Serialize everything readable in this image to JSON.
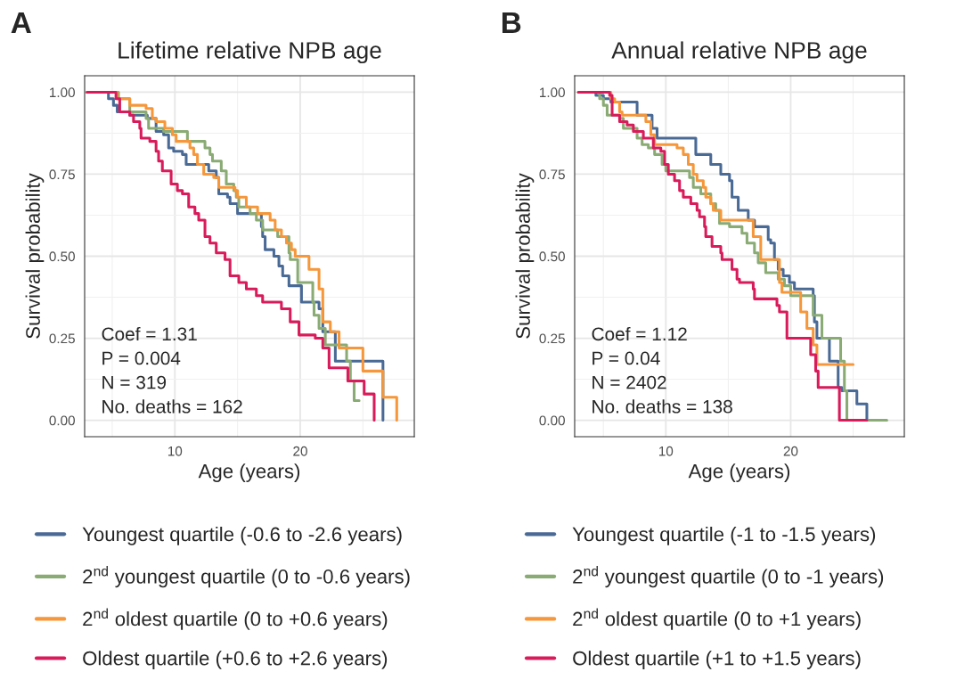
{
  "chart_data": [
    {
      "type": "step",
      "title": "Lifetime relative NPB age",
      "xlabel": "Age (years)",
      "ylabel": "Survival probability",
      "annotations": [
        "A",
        "Coef = 1.31",
        "P = 0.004",
        "N = 319",
        "No. deaths = 162"
      ],
      "xlim": [
        2.8,
        29.1
      ],
      "xticks": [
        10,
        20
      ],
      "ylim": [
        -0.05,
        1.05
      ],
      "yticks": [
        {
          "value": 0,
          "label": "0.00"
        },
        {
          "value": 0.25,
          "label": "0.25"
        },
        {
          "value": 0.5,
          "label": "0.50"
        },
        {
          "value": 0.75,
          "label": "0.75"
        },
        {
          "value": 1,
          "label": "1.00"
        }
      ],
      "grid": true,
      "legend": "bottom",
      "series": [
        {
          "name": "Youngest quartile (-0.6 to -2.6 years)",
          "color": "#4a6a96",
          "x": [
            3.0,
            4.7,
            5.1,
            5.4,
            6.4,
            7.8,
            8.5,
            9.1,
            9.5,
            9.9,
            10.6,
            10.9,
            12.7,
            13.3,
            13.5,
            14.2,
            14.4,
            15.0,
            16.5,
            16.9,
            17.0,
            17.2,
            17.9,
            18.3,
            18.6,
            19.1,
            20.1,
            21.5,
            21.8,
            22.8,
            26.6
          ],
          "values": [
            1.0,
            0.98,
            0.96,
            0.94,
            0.93,
            0.92,
            0.88,
            0.87,
            0.83,
            0.82,
            0.81,
            0.78,
            0.76,
            0.74,
            0.69,
            0.68,
            0.66,
            0.63,
            0.63,
            0.59,
            0.56,
            0.52,
            0.5,
            0.47,
            0.44,
            0.41,
            0.36,
            0.34,
            0.27,
            0.18,
            0.0
          ]
        },
        {
          "name": "2$^{nd}$ youngest quartile (0 to -0.6 years)",
          "color": "#8aab74",
          "x": [
            3.0,
            5.5,
            6.4,
            7.7,
            7.9,
            9.1,
            11.0,
            12.4,
            12.8,
            13.0,
            13.7,
            14.1,
            14.7,
            14.9,
            15.1,
            16.0,
            16.5,
            17.0,
            18.2,
            19.1,
            19.2,
            19.8,
            21.0,
            21.1,
            21.5,
            22.0,
            23.7,
            24.0,
            24.3,
            24.7
          ],
          "values": [
            1.0,
            0.98,
            0.94,
            0.92,
            0.89,
            0.88,
            0.85,
            0.83,
            0.81,
            0.79,
            0.76,
            0.72,
            0.7,
            0.68,
            0.65,
            0.63,
            0.61,
            0.58,
            0.56,
            0.51,
            0.49,
            0.42,
            0.36,
            0.32,
            0.28,
            0.23,
            0.18,
            0.12,
            0.06,
            0.06
          ]
        },
        {
          "name": "2$^{nd}$ oldest quartile (0 to +0.6 years)",
          "color": "#f5973a",
          "x": [
            3.0,
            5.4,
            6.4,
            7.7,
            8.2,
            8.5,
            9.2,
            9.8,
            10.1,
            11.2,
            11.5,
            11.8,
            12.3,
            13.1,
            13.5,
            14.8,
            15.0,
            15.7,
            16.6,
            17.6,
            18.0,
            18.5,
            18.9,
            19.3,
            19.6,
            20.7,
            21.5,
            21.8,
            22.4,
            23.1,
            25.0,
            26.6,
            27.7
          ],
          "values": [
            1.0,
            0.98,
            0.96,
            0.95,
            0.92,
            0.91,
            0.89,
            0.87,
            0.85,
            0.83,
            0.81,
            0.78,
            0.75,
            0.74,
            0.71,
            0.7,
            0.68,
            0.65,
            0.63,
            0.61,
            0.58,
            0.56,
            0.54,
            0.52,
            0.5,
            0.46,
            0.4,
            0.3,
            0.27,
            0.22,
            0.15,
            0.07,
            0.0
          ]
        },
        {
          "name": "Oldest quartile (+0.6 to +2.6 years)",
          "color": "#d81b5a",
          "x": [
            3.0,
            5.3,
            5.6,
            6.4,
            6.7,
            7.2,
            7.3,
            8.0,
            8.5,
            8.7,
            9.0,
            9.7,
            10.2,
            10.6,
            11.1,
            11.6,
            11.9,
            12.4,
            12.8,
            13.3,
            14.0,
            14.4,
            15.1,
            15.7,
            16.5,
            17.0,
            18.5,
            19.2,
            19.9,
            21.2,
            21.8,
            22.3,
            23.8,
            25.1,
            25.9
          ],
          "values": [
            1.0,
            0.98,
            0.94,
            0.93,
            0.91,
            0.89,
            0.86,
            0.85,
            0.82,
            0.79,
            0.76,
            0.72,
            0.7,
            0.69,
            0.65,
            0.63,
            0.61,
            0.56,
            0.54,
            0.51,
            0.49,
            0.44,
            0.42,
            0.4,
            0.38,
            0.36,
            0.34,
            0.3,
            0.26,
            0.25,
            0.22,
            0.16,
            0.12,
            0.08,
            0.0
          ]
        }
      ]
    },
    {
      "type": "step",
      "title": "Annual relative NPB age",
      "xlabel": "Age (years)",
      "ylabel": "Survival probability",
      "annotations": [
        "B",
        "Coef = 1.12",
        "P = 0.04",
        "N = 2402",
        "No. deaths = 138"
      ],
      "xlim": [
        2.7,
        29.1
      ],
      "xticks": [
        10,
        20
      ],
      "ylim": [
        -0.05,
        1.05
      ],
      "yticks": [
        {
          "value": 0,
          "label": "0.00"
        },
        {
          "value": 0.25,
          "label": "0.25"
        },
        {
          "value": 0.5,
          "label": "0.50"
        },
        {
          "value": 0.75,
          "label": "0.75"
        },
        {
          "value": 1,
          "label": "1.00"
        }
      ],
      "grid": true,
      "legend": "bottom",
      "series": [
        {
          "name": "Youngest quartile (-1 to -1.5 years)",
          "color": "#4a6a96",
          "x": [
            3.0,
            4.4,
            5.0,
            5.6,
            7.7,
            8.9,
            9.3,
            12.4,
            13.6,
            14.4,
            15.1,
            15.3,
            15.8,
            16.6,
            17.1,
            18.2,
            18.4,
            18.7,
            19.0,
            19.4,
            19.9,
            20.3,
            21.8,
            21.9,
            22.1,
            23.1,
            23.8,
            24.1,
            25.3,
            26.1
          ],
          "values": [
            1.0,
            0.99,
            0.98,
            0.97,
            0.93,
            0.89,
            0.86,
            0.81,
            0.78,
            0.75,
            0.73,
            0.68,
            0.64,
            0.61,
            0.59,
            0.55,
            0.54,
            0.49,
            0.46,
            0.44,
            0.42,
            0.4,
            0.38,
            0.3,
            0.25,
            0.18,
            0.1,
            0.09,
            0.05,
            0.0
          ]
        },
        {
          "name": "2$^{nd}$ youngest quartile (0 to -1 years)",
          "color": "#8aab74",
          "x": [
            3.0,
            4.7,
            5.0,
            5.3,
            6.3,
            6.6,
            7.7,
            8.1,
            8.6,
            9.1,
            9.7,
            10.0,
            11.9,
            12.2,
            12.8,
            13.6,
            14.0,
            14.3,
            15.1,
            16.1,
            16.5,
            17.1,
            17.4,
            18.0,
            19.0,
            19.5,
            20.0,
            21.5,
            21.8,
            22.5,
            24.0,
            24.3,
            24.5,
            27.7
          ],
          "values": [
            1.0,
            0.98,
            0.96,
            0.93,
            0.92,
            0.89,
            0.86,
            0.84,
            0.83,
            0.81,
            0.78,
            0.76,
            0.74,
            0.71,
            0.69,
            0.66,
            0.64,
            0.6,
            0.59,
            0.57,
            0.54,
            0.51,
            0.48,
            0.45,
            0.43,
            0.41,
            0.38,
            0.38,
            0.32,
            0.25,
            0.18,
            0.09,
            0.0,
            0.0
          ]
        },
        {
          "name": "2$^{nd}$ oldest quartile (0 to +1 years)",
          "color": "#f5973a",
          "x": [
            3.0,
            5.6,
            5.9,
            6.3,
            6.5,
            8.4,
            8.8,
            9.1,
            10.9,
            11.4,
            11.8,
            12.2,
            12.5,
            13.0,
            13.2,
            13.6,
            13.8,
            14.4,
            17.0,
            17.6,
            19.1,
            19.3,
            20.8,
            21.3,
            21.8,
            22.1,
            25.0
          ],
          "values": [
            1.0,
            0.98,
            0.97,
            0.94,
            0.93,
            0.91,
            0.87,
            0.84,
            0.83,
            0.81,
            0.78,
            0.75,
            0.73,
            0.71,
            0.68,
            0.66,
            0.64,
            0.61,
            0.56,
            0.49,
            0.42,
            0.39,
            0.33,
            0.28,
            0.23,
            0.17,
            0.17
          ]
        },
        {
          "name": "Oldest quartile (+1 to +1.5 years)",
          "color": "#d81b5a",
          "x": [
            3.0,
            5.5,
            5.7,
            6.3,
            6.9,
            7.4,
            8.1,
            8.2,
            9.0,
            9.6,
            9.9,
            10.2,
            10.7,
            11.1,
            11.4,
            12.0,
            12.5,
            12.7,
            13.1,
            13.2,
            13.7,
            14.4,
            14.5,
            15.3,
            15.7,
            15.9,
            17.0,
            17.1,
            18.9,
            19.1,
            19.7,
            21.6,
            22.0,
            22.2,
            23.9,
            26.1
          ],
          "values": [
            1.0,
            0.99,
            0.93,
            0.91,
            0.9,
            0.88,
            0.88,
            0.86,
            0.83,
            0.82,
            0.78,
            0.75,
            0.73,
            0.7,
            0.68,
            0.66,
            0.64,
            0.62,
            0.59,
            0.56,
            0.53,
            0.51,
            0.49,
            0.46,
            0.43,
            0.42,
            0.4,
            0.37,
            0.35,
            0.33,
            0.25,
            0.2,
            0.15,
            0.1,
            0.0,
            0.0
          ]
        }
      ]
    }
  ]
}
